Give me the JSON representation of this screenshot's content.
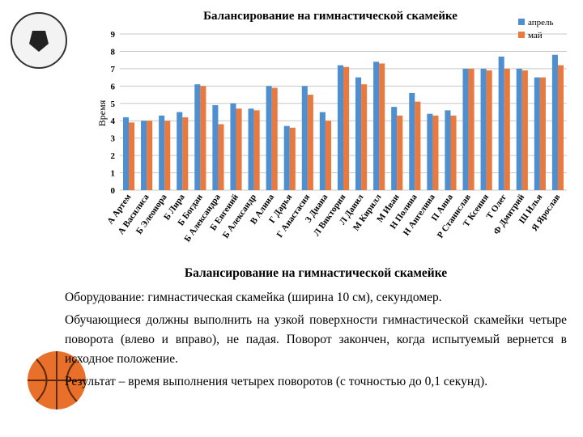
{
  "chart_data": {
    "type": "bar",
    "title": "Балансирование на гимнастической скамейке",
    "y_label": "Время",
    "categories": [
      "А Артем",
      "А Василиса",
      "Б Элеонора",
      "Б Лира",
      "Б Богдан",
      "Б Александра",
      "Б Евгений",
      "Б Александр",
      "В Алина",
      "Г Дарья",
      "Г Анастасия",
      "З Диана",
      "Л Виктория",
      "Л Данил",
      "М Кирилл",
      "М Иван",
      "Н Полина",
      "Н Ангелина",
      "П Анна",
      "Р Станислав",
      "Т Ксения",
      "Т Олег",
      "Ф Дмитрий",
      "Ш Илья",
      "Я Ярослав"
    ],
    "series": [
      {
        "name": "апрель",
        "color": "#4f8fcf",
        "values": [
          4.2,
          4.0,
          4.3,
          4.5,
          6.1,
          4.9,
          5.0,
          4.7,
          6.0,
          3.7,
          6.0,
          4.5,
          7.2,
          6.5,
          7.4,
          4.8,
          5.6,
          4.4,
          4.6,
          7.0,
          7.0,
          7.7,
          7.0,
          6.5,
          7.8
        ]
      },
      {
        "name": "май",
        "color": "#e8793f",
        "values": [
          3.9,
          4.0,
          4.0,
          4.2,
          6.0,
          3.8,
          4.7,
          4.6,
          5.9,
          3.6,
          5.5,
          4.0,
          7.1,
          6.1,
          7.3,
          4.3,
          5.1,
          4.3,
          4.3,
          7.0,
          6.9,
          7.0,
          6.9,
          6.5,
          7.2
        ]
      }
    ],
    "ylim": [
      0,
      9
    ],
    "yticks": [
      0,
      1,
      2,
      3,
      4,
      5,
      6,
      7,
      8,
      9
    ],
    "grid": true,
    "legend": "top-right"
  },
  "slide_text": {
    "heading": "Балансирование на гимнастической скамейке",
    "paragraphs": [
      "Оборудование: гимнастическая скамейка (ширина 10 см), секундомер.",
      "Обучающиеся должны выполнить на узкой поверхности гимнастической скамейки четыре поворота (влево и вправо), не падая. Поворот закончен, когда испытуемый вернется в исходное положение.",
      "Результат – время выполнения четырех поворотов (с точностью до 0,1 секунд)."
    ]
  }
}
